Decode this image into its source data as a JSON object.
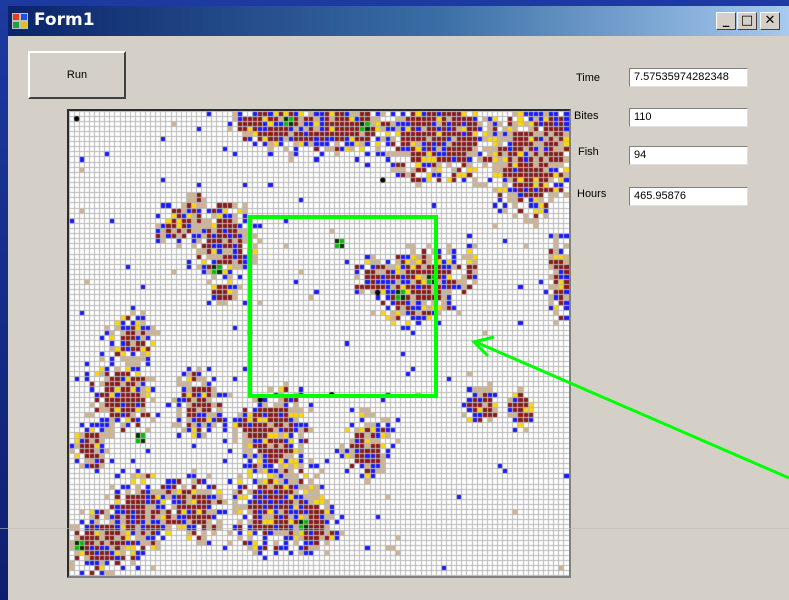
{
  "window": {
    "title": "Form1",
    "controls": {
      "minimize": "_",
      "maximize": "□",
      "close": "✕"
    }
  },
  "toolbar": {
    "run_label": "Run"
  },
  "stats": {
    "time_label": "Time",
    "time_value": "7.57535974282348",
    "bites_label": "Bites",
    "bites_value": "110",
    "fish_label": "Fish",
    "fish_value": "94",
    "hours_label": "Hours",
    "hours_value": "465.95876"
  },
  "simulation_grid": {
    "columns": 98,
    "rows": 91,
    "colors": {
      "grid_line": "#b8b8b8",
      "background": "#ffffff",
      "dark_red": "#8b1a1a",
      "tan": "#d2b48c",
      "yellow": "#ffd700",
      "blue": "#1a1aff",
      "green": "#00c000",
      "dark_green": "#003300",
      "black": "#000000"
    }
  },
  "annotation": {
    "highlight_color": "#00ff00"
  }
}
